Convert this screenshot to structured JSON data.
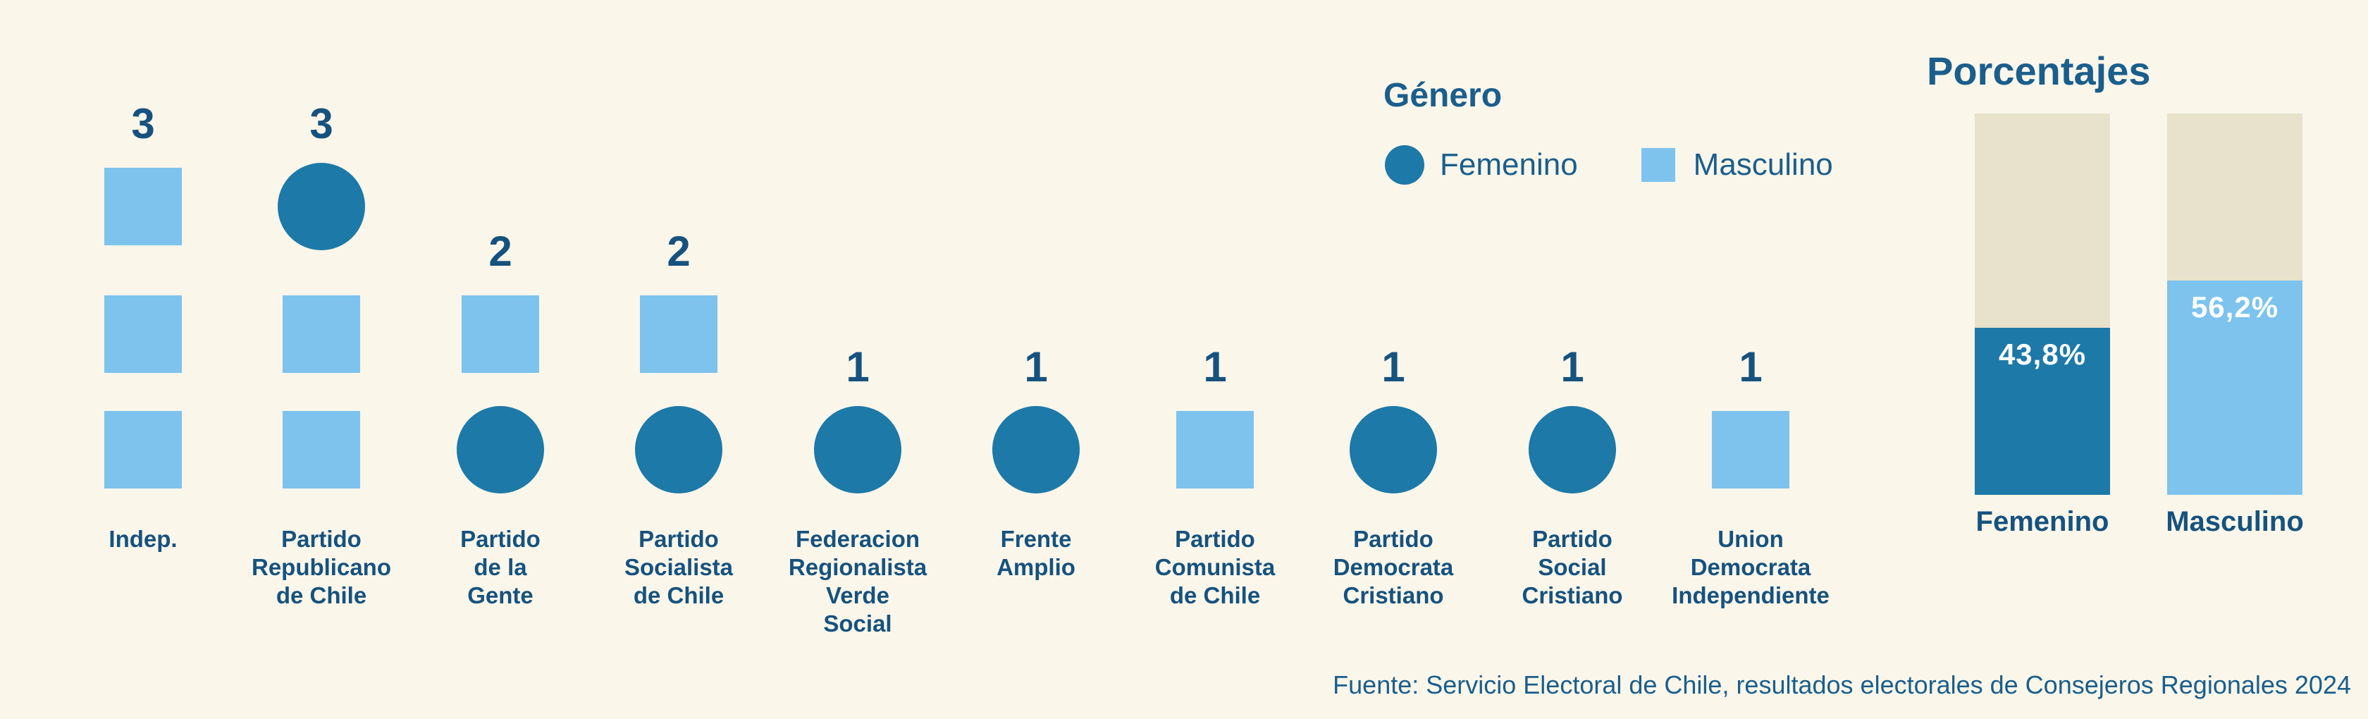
{
  "page": {
    "background_color": "#FAF6EA",
    "text_color": "#16527E",
    "accent_title_color": "#1A5E8C"
  },
  "colors": {
    "femenino": "#1D79A8",
    "masculino": "#7DC3EE",
    "bar_remainder": "#E8E1CB",
    "value_label_on_bar": "#FFFFFF"
  },
  "legend": {
    "title": "Género",
    "items": [
      {
        "label": "Femenino",
        "shape": "circle",
        "color": "#1D79A8"
      },
      {
        "label": "Masculino",
        "shape": "square",
        "color": "#7DC3EE"
      }
    ]
  },
  "source": "Fuente: Servicio Electoral de Chile, resultados electorales de Consejeros Regionales 2024",
  "chart_data": [
    {
      "type": "pictogram",
      "title": "",
      "legend_title": "Género",
      "series_legend": [
        {
          "name": "Femenino",
          "glyph": "circle",
          "color": "#1D79A8"
        },
        {
          "name": "Masculino",
          "glyph": "square",
          "color": "#7DC3EE"
        }
      ],
      "categories": [
        "Indep.",
        "Partido\nRepublicano\nde Chile",
        "Partido\nde la\nGente",
        "Partido\nSocialista\nde Chile",
        "Federacion\nRegionalista\nVerde\nSocial",
        "Frente\nAmplio",
        "Partido\nComunista\nde Chile",
        "Partido\nDemocrata\nCristiano",
        "Partido\nSocial\nCristiano",
        "Union\nDemocrata\nIndependiente"
      ],
      "totals": [
        3,
        3,
        2,
        2,
        1,
        1,
        1,
        1,
        1,
        1
      ],
      "series": [
        {
          "name": "Femenino",
          "values": [
            0,
            1,
            1,
            1,
            1,
            1,
            0,
            1,
            1,
            0
          ]
        },
        {
          "name": "Masculino",
          "values": [
            3,
            2,
            1,
            1,
            0,
            0,
            1,
            0,
            0,
            1
          ]
        }
      ],
      "stacks_top_to_bottom": [
        [
          "M",
          "M",
          "M"
        ],
        [
          "F",
          "M",
          "M"
        ],
        [
          "M",
          "F"
        ],
        [
          "M",
          "F"
        ],
        [
          "F"
        ],
        [
          "F"
        ],
        [
          "M"
        ],
        [
          "F"
        ],
        [
          "F"
        ],
        [
          "M"
        ]
      ]
    },
    {
      "type": "bar",
      "title": "Porcentajes",
      "subtype": "stacked-percent-of-total",
      "categories": [
        "Femenino",
        "Masculino"
      ],
      "values": [
        43.8,
        56.2
      ],
      "value_labels": [
        "43,8%",
        "56,2%"
      ],
      "ylim": [
        0,
        100
      ],
      "grid": false,
      "legend_position": "none"
    }
  ]
}
